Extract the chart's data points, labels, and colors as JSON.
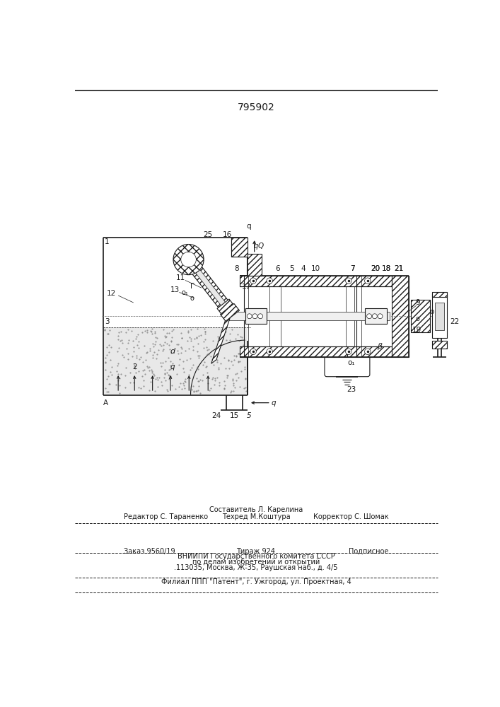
{
  "title": "795902",
  "bg_color": "#ffffff",
  "line_color": "#1a1a1a",
  "footer": {
    "line1_left": "Редактор С. Тараненко",
    "line1_center": "Составитель Л. Карелина",
    "line1_right": "Корректор С. Шомак",
    "line2_left": "Техред М.Коштура",
    "line3_left": "Заказ 9560/19",
    "line3_center": "Тираж 924",
    "line3_right": "Подписное",
    "line4": "ВНИИПИ Государственного комитета СССР",
    "line5": "по делам изобретений и открытий",
    "line6": ".113035, Москва, Ж-35, Раушская наб., д. 4/5",
    "line7": "Филиал ППП \"Патент\", г. Ужгород, ул. Проектная, 4"
  }
}
